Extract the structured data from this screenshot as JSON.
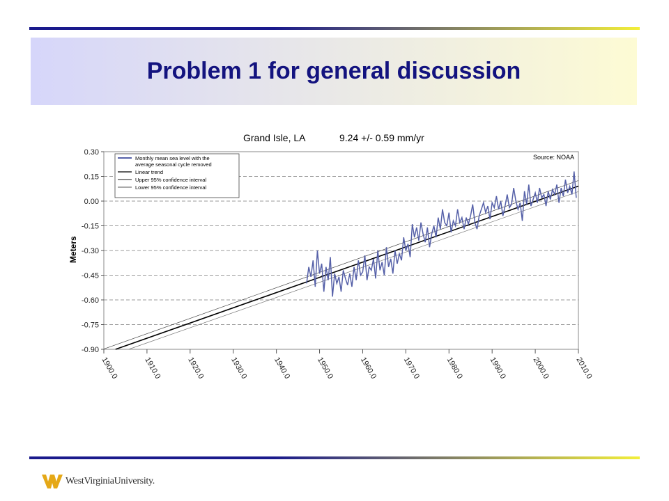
{
  "slide": {
    "title": "Problem 1 for general discussion",
    "colors": {
      "rule_left": "#1a1a8c",
      "rule_right": "#f3ef3a",
      "band_left": "#d6d6fa",
      "band_right": "#fdfbd4",
      "title": "#13137f"
    }
  },
  "logo": {
    "name": "wvu-flying-wv-logo",
    "text": "WestVirginiaUniversity.",
    "color": "#e5a817"
  },
  "chart_data": {
    "type": "line",
    "title": "Grand Isle, LA",
    "subtitle": "9.24 +/- 0.59 mm/yr",
    "source": "Source: NOAA",
    "ylabel": "Meters",
    "xlim": [
      1900,
      2010
    ],
    "ylim": [
      -0.9,
      0.3
    ],
    "yticks": [
      "0.30",
      "0.15",
      "0.00",
      "-0.15",
      "-0.30",
      "-0.45",
      "-0.60",
      "-0.75",
      "-0.90"
    ],
    "xticks": [
      "1900.0",
      "1910.0",
      "1920.0",
      "1930.0",
      "1940.0",
      "1950.0",
      "1960.0",
      "1970.0",
      "1980.0",
      "1990.0",
      "2000.0",
      "2010.0"
    ],
    "grid": "dashed horizontal",
    "legend_position": "top-left",
    "legend": [
      {
        "label": "Monthly mean sea level with the average seasonal cycle removed",
        "lines": [
          "Monthly mean sea level with the",
          "average seasonal cycle removed"
        ],
        "color": "#5560a8"
      },
      {
        "label": "Linear trend",
        "lines": [
          "Linear trend"
        ],
        "color": "#000000"
      },
      {
        "label": "Upper 95% confidence interval",
        "lines": [
          "Upper 95% confidence interval"
        ],
        "color": "#444444"
      },
      {
        "label": "Lower 95% confidence interval",
        "lines": [
          "Lower 95% confidence interval"
        ],
        "color": "#777777"
      }
    ],
    "series": [
      {
        "name": "Monthly mean sea level with the average seasonal cycle removed",
        "x": [
          1947.0,
          1947.5,
          1948.0,
          1948.5,
          1949.0,
          1949.5,
          1950.0,
          1950.5,
          1951.0,
          1951.5,
          1952.0,
          1952.5,
          1953.0,
          1953.5,
          1954.0,
          1954.5,
          1955.0,
          1955.5,
          1956.0,
          1956.5,
          1957.0,
          1957.5,
          1958.0,
          1958.5,
          1959.0,
          1959.5,
          1960.0,
          1960.5,
          1961.0,
          1961.5,
          1962.0,
          1962.5,
          1963.0,
          1963.5,
          1964.0,
          1964.5,
          1965.0,
          1965.5,
          1966.0,
          1966.5,
          1967.0,
          1967.5,
          1968.0,
          1968.5,
          1969.0,
          1969.5,
          1970.0,
          1970.5,
          1971.0,
          1971.5,
          1972.0,
          1972.5,
          1973.0,
          1973.5,
          1974.0,
          1974.5,
          1975.0,
          1975.5,
          1976.0,
          1976.5,
          1977.0,
          1977.5,
          1978.0,
          1978.5,
          1979.0,
          1979.5,
          1980.0,
          1980.5,
          1981.0,
          1981.5,
          1982.0,
          1982.5,
          1983.0,
          1983.5,
          1984.0,
          1984.5,
          1985.0,
          1985.5,
          1986.0,
          1986.5,
          1987.0,
          1987.5,
          1988.0,
          1988.5,
          1989.0,
          1989.5,
          1990.0,
          1990.5,
          1991.0,
          1991.5,
          1992.0,
          1992.5,
          1993.0,
          1993.5,
          1994.0,
          1994.5,
          1995.0,
          1995.5,
          1996.0,
          1996.5,
          1997.0,
          1997.5,
          1998.0,
          1998.5,
          1999.0,
          1999.5,
          2000.0,
          2000.5,
          2001.0,
          2001.5,
          2002.0,
          2002.5,
          2003.0,
          2003.5,
          2004.0,
          2004.5,
          2005.0,
          2005.5,
          2006.0,
          2006.5,
          2007.0,
          2007.5,
          2008.0,
          2008.5,
          2009.0,
          2009.5
        ],
        "y": [
          -0.5,
          -0.4,
          -0.46,
          -0.36,
          -0.52,
          -0.3,
          -0.44,
          -0.38,
          -0.55,
          -0.4,
          -0.48,
          -0.34,
          -0.58,
          -0.44,
          -0.5,
          -0.46,
          -0.55,
          -0.42,
          -0.47,
          -0.51,
          -0.44,
          -0.52,
          -0.4,
          -0.48,
          -0.36,
          -0.45,
          -0.43,
          -0.33,
          -0.48,
          -0.4,
          -0.42,
          -0.35,
          -0.47,
          -0.3,
          -0.42,
          -0.37,
          -0.45,
          -0.28,
          -0.4,
          -0.35,
          -0.44,
          -0.3,
          -0.38,
          -0.32,
          -0.36,
          -0.22,
          -0.3,
          -0.26,
          -0.34,
          -0.14,
          -0.22,
          -0.16,
          -0.24,
          -0.13,
          -0.2,
          -0.25,
          -0.16,
          -0.28,
          -0.2,
          -0.15,
          -0.22,
          -0.1,
          -0.17,
          -0.05,
          -0.13,
          -0.15,
          -0.07,
          -0.19,
          -0.12,
          -0.15,
          -0.05,
          -0.13,
          -0.1,
          -0.17,
          -0.1,
          -0.14,
          -0.09,
          -0.02,
          -0.13,
          -0.17,
          -0.09,
          -0.05,
          -0.01,
          -0.07,
          -0.03,
          -0.11,
          -0.01,
          -0.04,
          0.03,
          -0.05,
          0.0,
          -0.09,
          -0.03,
          0.04,
          -0.04,
          -0.02,
          0.08,
          0.0,
          -0.05,
          -0.01,
          -0.12,
          0.06,
          -0.02,
          0.1,
          -0.03,
          0.01,
          0.05,
          -0.01,
          0.08,
          0.02,
          0.04,
          -0.03,
          0.06,
          0.01,
          0.07,
          0.04,
          0.1,
          -0.01,
          0.08,
          0.03,
          0.13,
          0.05,
          0.09,
          0.04,
          0.18,
          0.02
        ]
      },
      {
        "name": "Linear trend",
        "x": [
          1900,
          2010
        ],
        "y": [
          -0.925,
          0.091
        ]
      },
      {
        "name": "Upper 95% confidence interval",
        "x": [
          1900,
          2010
        ],
        "y": [
          -0.898,
          0.125
        ]
      },
      {
        "name": "Lower 95% confidence interval",
        "x": [
          1900,
          2010
        ],
        "y": [
          -0.953,
          0.058
        ]
      }
    ]
  }
}
